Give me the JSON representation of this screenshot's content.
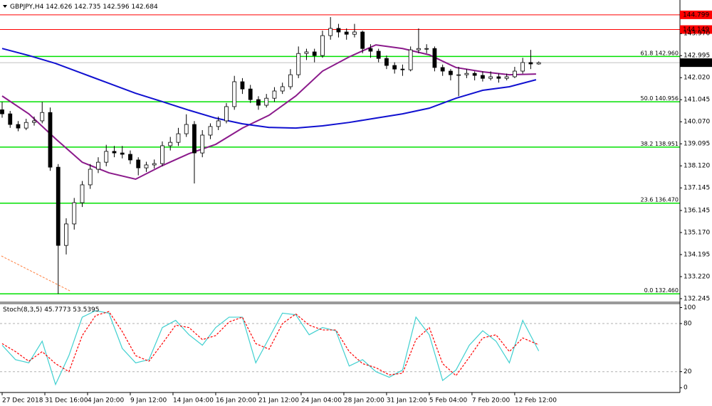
{
  "chart_data": [
    {
      "type": "candlestick",
      "title": "GBPJPY,H4",
      "up_color": "#ffffff",
      "down_color": "#000000",
      "xlim": [
        -0.8,
        253.9
      ],
      "ylim": [
        132.12,
        145.33
      ],
      "yticks": [
        {
          "value": 143.97,
          "label": "143.970"
        },
        142.995,
        {
          "value": 142.02,
          "label": "142.020"
        },
        141.045,
        {
          "value": 140.07,
          "label": "140.070"
        },
        139.095,
        {
          "value": 138.12,
          "label": "138.120"
        },
        137.145,
        136.145,
        {
          "value": 135.17,
          "label": "135.170"
        },
        134.195,
        {
          "value": 133.22,
          "label": "133.220"
        },
        132.245
      ],
      "x": [
        0,
        3,
        6,
        9,
        12,
        15,
        18,
        21,
        24,
        27,
        30,
        33,
        36,
        39,
        42,
        45,
        48,
        51,
        54,
        57,
        60,
        63,
        66,
        69,
        72,
        75,
        78,
        81,
        84,
        87,
        90,
        93,
        96,
        99,
        102,
        105,
        108,
        111,
        114,
        117,
        120,
        123,
        126,
        129,
        132,
        135,
        138,
        141,
        144,
        147,
        150,
        153,
        156,
        159,
        162,
        165,
        168,
        171,
        174,
        177,
        180,
        183,
        186,
        189,
        192,
        195,
        198,
        201
      ],
      "ohlc": [
        [
          140.6,
          140.95,
          140.25,
          140.42
        ],
        [
          140.42,
          140.55,
          139.8,
          139.95
        ],
        [
          139.95,
          140.1,
          139.65,
          139.79
        ],
        [
          139.79,
          140.2,
          139.7,
          140.04
        ],
        [
          140.04,
          140.3,
          139.9,
          140.11
        ],
        [
          140.11,
          140.95,
          140.0,
          140.48
        ],
        [
          140.48,
          140.7,
          137.9,
          138.06
        ],
        [
          138.06,
          138.2,
          132.46,
          134.6
        ],
        [
          134.6,
          135.8,
          134.2,
          135.55
        ],
        [
          135.55,
          136.7,
          135.3,
          136.49
        ],
        [
          136.49,
          137.45,
          136.3,
          137.28
        ],
        [
          137.28,
          138.2,
          137.1,
          137.97
        ],
        [
          137.97,
          138.5,
          137.8,
          138.28
        ],
        [
          138.28,
          139.05,
          138.1,
          138.76
        ],
        [
          138.76,
          139.0,
          138.5,
          138.69
        ],
        [
          138.69,
          139.0,
          138.45,
          138.63
        ],
        [
          138.63,
          138.8,
          138.2,
          138.38
        ],
        [
          138.38,
          138.5,
          137.7,
          138.03
        ],
        [
          138.03,
          138.3,
          137.85,
          138.16
        ],
        [
          138.16,
          138.4,
          138.0,
          138.22
        ],
        [
          138.22,
          139.2,
          138.1,
          139.01
        ],
        [
          139.01,
          139.4,
          138.8,
          139.16
        ],
        [
          139.16,
          139.8,
          139.0,
          139.54
        ],
        [
          139.54,
          140.4,
          139.4,
          139.95
        ],
        [
          139.95,
          140.1,
          137.34,
          138.69
        ],
        [
          138.69,
          139.7,
          138.5,
          139.48
        ],
        [
          139.48,
          140.0,
          139.3,
          139.86
        ],
        [
          139.86,
          140.3,
          139.7,
          140.11
        ],
        [
          140.11,
          140.9,
          140.0,
          140.74
        ],
        [
          140.74,
          142.1,
          140.6,
          141.84
        ],
        [
          141.84,
          142.0,
          141.3,
          141.52
        ],
        [
          141.52,
          141.7,
          140.9,
          141.05
        ],
        [
          141.05,
          141.2,
          140.6,
          140.8
        ],
        [
          140.8,
          141.3,
          140.7,
          141.11
        ],
        [
          141.11,
          141.6,
          140.95,
          141.43
        ],
        [
          141.43,
          141.8,
          141.3,
          141.62
        ],
        [
          141.62,
          142.4,
          141.5,
          142.15
        ],
        [
          142.15,
          143.4,
          142.0,
          143.09
        ],
        [
          143.09,
          143.3,
          142.8,
          143.16
        ],
        [
          143.16,
          143.3,
          142.7,
          143.0
        ],
        [
          143.0,
          144.1,
          142.9,
          143.88
        ],
        [
          143.88,
          144.7,
          143.7,
          144.2
        ],
        [
          144.2,
          144.4,
          143.8,
          144.04
        ],
        [
          144.04,
          144.2,
          143.7,
          143.94
        ],
        [
          143.94,
          144.4,
          143.8,
          144.04
        ],
        [
          144.04,
          144.1,
          143.1,
          143.31
        ],
        [
          143.31,
          143.5,
          142.9,
          143.19
        ],
        [
          143.19,
          143.3,
          142.7,
          142.87
        ],
        [
          142.87,
          143.0,
          142.4,
          142.56
        ],
        [
          142.56,
          142.7,
          142.2,
          142.4
        ],
        [
          142.4,
          142.6,
          142.1,
          142.37
        ],
        [
          142.37,
          143.4,
          142.3,
          143.25
        ],
        [
          143.25,
          144.2,
          143.1,
          143.31
        ],
        [
          143.31,
          143.5,
          143.1,
          143.31
        ],
        [
          143.31,
          143.4,
          142.3,
          142.47
        ],
        [
          142.47,
          142.6,
          142.1,
          142.31
        ],
        [
          142.31,
          142.4,
          141.9,
          142.15
        ],
        [
          142.15,
          142.5,
          141.2,
          142.15
        ],
        [
          142.15,
          142.4,
          142.0,
          142.21
        ],
        [
          142.21,
          142.3,
          141.9,
          142.12
        ],
        [
          142.12,
          142.3,
          141.85,
          141.99
        ],
        [
          141.99,
          142.3,
          141.9,
          142.06
        ],
        [
          142.06,
          142.2,
          141.8,
          141.99
        ],
        [
          141.99,
          142.2,
          141.9,
          142.06
        ],
        [
          142.06,
          142.5,
          142.0,
          142.31
        ],
        [
          142.31,
          142.9,
          142.2,
          142.69
        ],
        [
          142.69,
          143.25,
          142.4,
          142.626
        ],
        [
          142.626,
          142.735,
          142.596,
          142.684
        ]
      ],
      "lines": [
        {
          "color": "#8b1a8b",
          "x": [
            0,
            10,
            20,
            30,
            40,
            50,
            60,
            70,
            80,
            90,
            100,
            110,
            120,
            130,
            140,
            150,
            160,
            170,
            180,
            190,
            200
          ],
          "values": [
            141.21,
            140.42,
            139.32,
            138.28,
            137.81,
            137.53,
            138.13,
            138.66,
            139.07,
            139.79,
            140.36,
            141.21,
            142.31,
            142.94,
            143.47,
            143.31,
            143.03,
            142.47,
            142.28,
            142.15,
            142.18
          ]
        },
        {
          "color": "#1010d0",
          "x": [
            0,
            10,
            20,
            30,
            40,
            50,
            60,
            70,
            80,
            90,
            100,
            110,
            120,
            130,
            140,
            150,
            160,
            170,
            180,
            190,
            200
          ],
          "values": [
            143.31,
            143.0,
            142.65,
            142.21,
            141.77,
            141.33,
            140.96,
            140.58,
            140.23,
            139.98,
            139.82,
            139.79,
            139.89,
            140.04,
            140.23,
            140.42,
            140.67,
            141.11,
            141.46,
            141.62,
            141.93
          ]
        }
      ],
      "hlines": [
        {
          "value": 144.799,
          "color": "#ff0000"
        },
        {
          "value": 144.149,
          "color": "#ff0000"
        }
      ],
      "fib_levels": [
        {
          "level": "61.8",
          "value": 142.96,
          "label": "142.960"
        },
        {
          "level": "50.0",
          "value": 140.956,
          "label": "140.956"
        },
        {
          "level": "38.2",
          "value": 138.951,
          "label": "138.951"
        },
        {
          "level": "23.6",
          "value": 136.47,
          "label": "136.470"
        },
        {
          "level": "0.0",
          "value": 132.46,
          "label": "132.460"
        }
      ],
      "fib_color": "#00e000"
    },
    {
      "type": "line",
      "title": "Stoch(8,3,5)",
      "xlim": [
        -0.8,
        253.9
      ],
      "ylim": [
        -6,
        104
      ],
      "yticks": [
        100,
        80,
        20,
        0
      ],
      "levels": [
        80,
        20
      ],
      "xticks": [
        {
          "value": 0,
          "label": "27 Dec 2018"
        },
        {
          "value": 16,
          "label": "31 Dec 16:00"
        },
        {
          "value": 32,
          "label": "4 Jan 20:00"
        },
        {
          "value": 48,
          "label": "9 Jan 12:00"
        },
        {
          "value": 64,
          "label": "14 Jan 04:00"
        },
        {
          "value": 80,
          "label": "16 Jan 20:00"
        },
        {
          "value": 96,
          "label": "21 Jan 12:00"
        },
        {
          "value": 112,
          "label": "24 Jan 04:00"
        },
        {
          "value": 128,
          "label": "28 Jan 20:00"
        },
        {
          "value": 144,
          "label": "31 Jan 12:00"
        },
        {
          "value": 160,
          "label": "5 Feb 04:00"
        },
        {
          "value": 176,
          "label": "7 Feb 20:00"
        },
        {
          "value": 192,
          "label": "12 Feb 12:00"
        }
      ],
      "x": [
        0,
        5,
        10,
        15,
        20,
        25,
        30,
        35,
        40,
        45,
        50,
        55,
        60,
        65,
        70,
        75,
        80,
        85,
        90,
        95,
        100,
        105,
        110,
        115,
        120,
        125,
        130,
        135,
        140,
        145,
        150,
        155,
        160,
        165,
        170,
        175,
        180,
        185,
        190,
        195,
        201
      ],
      "series": [
        {
          "color": "#40d0d0",
          "dashed": false,
          "values": [
            53,
            35,
            31,
            58,
            4,
            40,
            88,
            96,
            93,
            49,
            31,
            35,
            75,
            84,
            66,
            53,
            75,
            88,
            88,
            31,
            62,
            93,
            91,
            66,
            75,
            71,
            27,
            35,
            20,
            13,
            22,
            88,
            66,
            9,
            22,
            53,
            71,
            58,
            31,
            84,
            45.7773
          ]
        },
        {
          "color": "#ff0000",
          "dashed": true,
          "values": [
            55,
            45,
            33,
            45,
            30,
            20,
            65,
            90,
            95,
            70,
            40,
            33,
            55,
            78,
            75,
            60,
            65,
            82,
            88,
            55,
            48,
            80,
            92,
            78,
            72,
            72,
            45,
            30,
            25,
            16,
            18,
            60,
            75,
            30,
            15,
            38,
            62,
            66,
            45,
            62,
            53.5395
          ]
        }
      ]
    }
  ]
}
